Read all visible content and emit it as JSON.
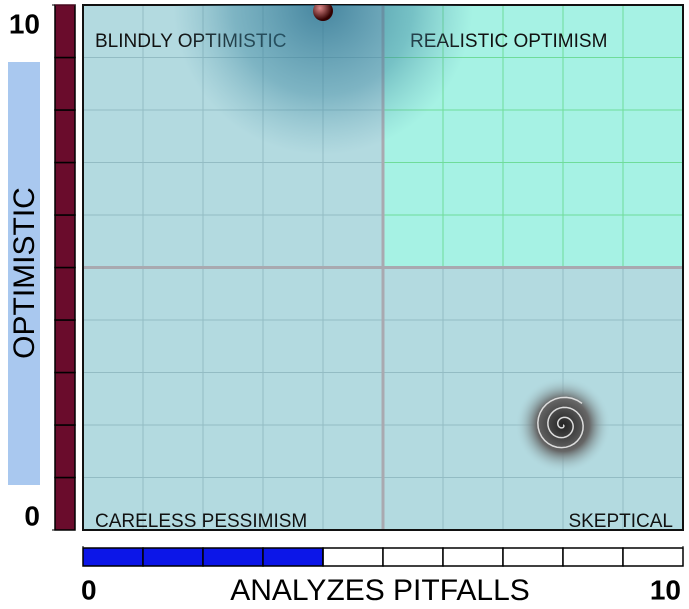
{
  "chart_data": {
    "type": "scatter",
    "xlabel": "ANALYZES PITFALLS",
    "ylabel": "OPTIMISTIC",
    "x": [
      4,
      8
    ],
    "values": [
      10,
      2
    ],
    "markers": [
      "ball",
      "spiral"
    ],
    "xlim": [
      0,
      10
    ],
    "ylim": [
      0,
      10
    ],
    "xticks": [
      0,
      10
    ],
    "yticks": [
      0,
      10
    ],
    "grid_step": 1,
    "split": 5,
    "quadrants": [
      "BLINDLY OPTIMISTIC",
      "REALISTIC OPTIMISM",
      "CARELESS PESSIMISM",
      "SKEPTICAL"
    ],
    "highlight_quadrant": 1,
    "colors": {
      "plot": "#b3dae0",
      "highlight": "#a6f2e4",
      "grid": "#93bcc4",
      "highlight_grid": "#6fdc9a",
      "split": "#a9a9b0",
      "x_bar": "#0c16e8",
      "y_bar": "#6a0c2c",
      "ylabel_box": "#a9c8ef"
    }
  }
}
